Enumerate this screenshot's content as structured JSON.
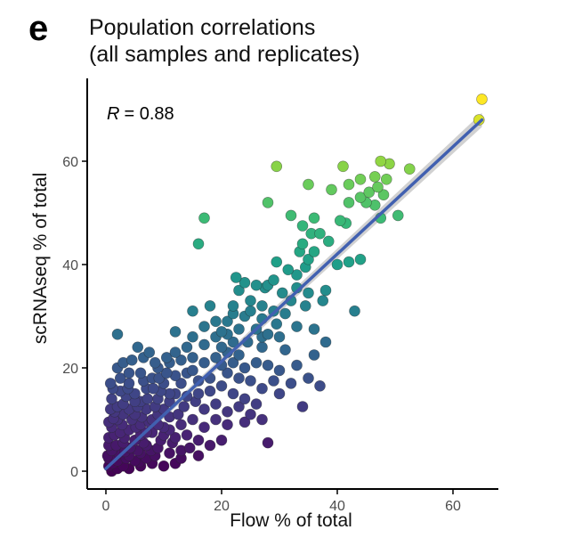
{
  "figure": {
    "panel_label": "e",
    "title_line1": "Population correlations",
    "title_line2": "(all samples and replicates)",
    "stat_label": "R",
    "stat_value": "= 0.88"
  },
  "chart_data": {
    "type": "scatter",
    "title": "Population correlations (all samples and replicates)",
    "xlabel": "Flow % of total",
    "ylabel": "scRNAseq % of total",
    "xlim": [
      -2,
      67
    ],
    "ylim": [
      -3,
      76
    ],
    "xticks": [
      0,
      20,
      40,
      60
    ],
    "yticks": [
      0,
      20,
      40,
      60
    ],
    "annotation": "R = 0.88",
    "color_scale": "viridis",
    "grid": false,
    "regression_line": {
      "x": [
        0,
        65
      ],
      "y": [
        0.5,
        68
      ],
      "color": "#4160b0",
      "band_color": "#bdbdbd"
    },
    "points": [
      [
        65,
        72
      ],
      [
        64.5,
        68
      ],
      [
        47.5,
        60
      ],
      [
        49,
        59.5
      ],
      [
        52.5,
        58.5
      ],
      [
        41,
        59
      ],
      [
        29.5,
        59
      ],
      [
        46.5,
        57
      ],
      [
        44,
        56.5
      ],
      [
        42,
        55.5
      ],
      [
        35,
        55.5
      ],
      [
        48.5,
        56.5
      ],
      [
        47,
        55
      ],
      [
        45.5,
        54
      ],
      [
        44,
        53
      ],
      [
        39,
        54.5
      ],
      [
        48,
        53.5
      ],
      [
        46.5,
        51.5
      ],
      [
        28,
        52
      ],
      [
        32,
        49.5
      ],
      [
        50.5,
        49.5
      ],
      [
        47.5,
        49
      ],
      [
        45,
        52
      ],
      [
        42,
        52
      ],
      [
        40.5,
        48.5
      ],
      [
        41.5,
        48
      ],
      [
        36,
        49
      ],
      [
        34,
        47.5
      ],
      [
        35.5,
        46
      ],
      [
        17,
        49
      ],
      [
        16,
        44
      ],
      [
        37,
        46
      ],
      [
        38.5,
        44.5
      ],
      [
        34,
        44
      ],
      [
        33.5,
        42.5
      ],
      [
        36,
        42.5
      ],
      [
        35,
        41
      ],
      [
        42,
        40.5
      ],
      [
        44,
        41
      ],
      [
        40,
        40
      ],
      [
        29.5,
        40.5
      ],
      [
        31.5,
        39
      ],
      [
        33,
        38
      ],
      [
        34.5,
        39.5
      ],
      [
        29,
        37
      ],
      [
        27.5,
        35.5
      ],
      [
        30.5,
        34.5
      ],
      [
        26,
        36
      ],
      [
        24,
        36.5
      ],
      [
        23,
        35
      ],
      [
        22.5,
        37.5
      ],
      [
        28,
        36
      ],
      [
        33,
        35.5
      ],
      [
        35,
        34.5
      ],
      [
        38,
        35
      ],
      [
        37.5,
        33
      ],
      [
        32,
        33
      ],
      [
        34.5,
        32
      ],
      [
        29,
        31
      ],
      [
        31,
        30.5
      ],
      [
        27,
        32
      ],
      [
        25,
        31
      ],
      [
        22,
        32
      ],
      [
        24,
        30
      ],
      [
        27,
        29.5
      ],
      [
        29.5,
        28.5
      ],
      [
        33,
        28
      ],
      [
        36,
        27.5
      ],
      [
        43,
        31
      ],
      [
        18,
        32
      ],
      [
        15,
        31
      ],
      [
        21,
        29
      ],
      [
        20,
        27
      ],
      [
        23,
        27.5
      ],
      [
        26,
        27.5
      ],
      [
        28,
        26.5
      ],
      [
        30,
        26
      ],
      [
        24.5,
        25
      ],
      [
        22,
        25
      ],
      [
        19,
        26
      ],
      [
        17,
        24.5
      ],
      [
        21,
        23
      ],
      [
        14,
        24
      ],
      [
        12,
        23
      ],
      [
        10.5,
        22
      ],
      [
        5.5,
        24
      ],
      [
        2,
        26.5
      ],
      [
        7.5,
        23
      ],
      [
        9,
        20
      ],
      [
        11,
        21
      ],
      [
        13,
        21.5
      ],
      [
        15,
        22
      ],
      [
        17,
        21
      ],
      [
        19,
        22
      ],
      [
        22,
        21
      ],
      [
        24,
        20
      ],
      [
        26,
        21
      ],
      [
        28,
        20.5
      ],
      [
        30,
        19.5
      ],
      [
        33,
        20.5
      ],
      [
        35,
        18
      ],
      [
        37,
        16.5
      ],
      [
        32,
        17
      ],
      [
        29,
        17.5
      ],
      [
        27,
        16
      ],
      [
        25,
        17.5
      ],
      [
        23,
        18
      ],
      [
        21,
        19
      ],
      [
        20,
        16.5
      ],
      [
        18,
        15.5
      ],
      [
        16,
        17.5
      ],
      [
        15,
        19.5
      ],
      [
        13,
        17
      ],
      [
        12,
        15
      ],
      [
        10,
        17
      ],
      [
        8,
        18
      ],
      [
        6,
        19
      ],
      [
        4,
        17
      ],
      [
        3,
        21
      ],
      [
        5,
        15
      ],
      [
        7,
        16
      ],
      [
        9,
        14
      ],
      [
        11,
        13.5
      ],
      [
        13.5,
        12.5
      ],
      [
        15.5,
        13.5
      ],
      [
        17,
        12
      ],
      [
        19,
        13
      ],
      [
        21,
        11.5
      ],
      [
        23,
        12.5
      ],
      [
        25,
        11
      ],
      [
        27,
        10
      ],
      [
        24,
        9.5
      ],
      [
        21,
        9
      ],
      [
        19,
        10
      ],
      [
        17,
        8.5
      ],
      [
        15,
        10
      ],
      [
        13,
        9
      ],
      [
        11,
        10.5
      ],
      [
        9,
        11
      ],
      [
        7,
        12
      ],
      [
        5,
        11
      ],
      [
        3,
        13
      ],
      [
        2,
        10
      ],
      [
        4,
        8
      ],
      [
        6,
        9
      ],
      [
        8,
        7.5
      ],
      [
        10,
        7
      ],
      [
        12,
        6.5
      ],
      [
        14,
        7
      ],
      [
        16,
        6
      ],
      [
        18,
        5
      ],
      [
        28,
        5.5
      ],
      [
        20,
        6
      ],
      [
        1.5,
        7
      ],
      [
        3,
        5.5
      ],
      [
        5,
        6
      ],
      [
        7,
        5
      ],
      [
        9,
        4.5
      ],
      [
        11,
        3.5
      ],
      [
        13,
        4
      ],
      [
        10,
        1
      ],
      [
        12,
        1.5
      ],
      [
        1,
        4
      ],
      [
        2,
        2
      ],
      [
        3,
        1
      ],
      [
        4,
        3
      ],
      [
        5,
        2
      ],
      [
        6,
        3.5
      ],
      [
        7,
        2.5
      ],
      [
        8,
        1.5
      ],
      [
        0.5,
        1
      ],
      [
        1,
        0
      ],
      [
        2,
        0.5
      ],
      [
        4,
        0.5
      ],
      [
        6,
        1
      ],
      [
        0.5,
        2.5
      ],
      [
        1.5,
        3
      ],
      [
        3.5,
        2.5
      ],
      [
        5.5,
        4
      ],
      [
        6.5,
        5.5
      ],
      [
        8.5,
        3
      ],
      [
        0.5,
        5
      ],
      [
        1,
        8.5
      ],
      [
        2.5,
        7.5
      ],
      [
        4.5,
        10
      ],
      [
        5.5,
        12.5
      ],
      [
        7.5,
        9.5
      ],
      [
        3.5,
        14.5
      ],
      [
        1.5,
        11.5
      ],
      [
        0.5,
        9.5
      ],
      [
        2.5,
        15.5
      ],
      [
        6,
        13.5
      ],
      [
        8.5,
        12.5
      ],
      [
        10,
        8.5
      ],
      [
        11.5,
        5.5
      ],
      [
        13,
        2.5
      ],
      [
        14.5,
        4.5
      ],
      [
        16,
        3
      ],
      [
        12.5,
        11
      ],
      [
        14,
        14.5
      ],
      [
        9.5,
        15.5
      ],
      [
        6.5,
        17.5
      ],
      [
        4,
        19
      ],
      [
        2.5,
        18
      ],
      [
        1,
        14
      ],
      [
        0.8,
        12
      ],
      [
        1.2,
        16
      ],
      [
        3,
        11
      ],
      [
        4,
        12
      ],
      [
        5,
        13.5
      ],
      [
        6,
        7
      ],
      [
        7,
        7.5
      ],
      [
        8,
        10
      ],
      [
        9,
        9
      ],
      [
        10,
        12
      ],
      [
        11,
        15
      ],
      [
        12,
        18.5
      ],
      [
        14,
        19
      ],
      [
        16,
        15
      ],
      [
        18,
        18
      ],
      [
        20,
        20.5
      ],
      [
        22,
        15
      ],
      [
        24,
        14
      ],
      [
        26,
        13
      ],
      [
        30,
        15
      ],
      [
        34,
        12.5
      ],
      [
        36,
        22.5
      ],
      [
        38,
        25
      ],
      [
        31,
        23.5
      ],
      [
        27,
        24
      ],
      [
        23,
        22.5
      ],
      [
        20,
        24
      ],
      [
        17,
        28
      ],
      [
        25,
        33
      ],
      [
        27,
        26
      ],
      [
        0.5,
        6.5
      ],
      [
        1.8,
        5
      ],
      [
        2.2,
        3.5
      ],
      [
        3.2,
        6.5
      ],
      [
        4.2,
        4.5
      ],
      [
        5.2,
        8.5
      ],
      [
        6.2,
        10.5
      ],
      [
        7.2,
        14
      ],
      [
        8.2,
        16
      ],
      [
        9.2,
        18
      ],
      [
        10.5,
        19
      ],
      [
        0.3,
        3
      ],
      [
        1.2,
        1.5
      ],
      [
        2.8,
        9
      ],
      [
        3.8,
        16
      ],
      [
        2,
        12.5
      ],
      [
        1.3,
        10.2
      ],
      [
        3.3,
        3.8
      ],
      [
        5.8,
        1.8
      ],
      [
        7.8,
        4
      ],
      [
        9.5,
        6
      ],
      [
        11,
        8
      ],
      [
        0.8,
        17
      ],
      [
        2,
        20
      ],
      [
        4.5,
        21.5
      ],
      [
        6.5,
        22
      ],
      [
        8.5,
        21
      ],
      [
        15,
        26
      ],
      [
        19,
        29
      ],
      [
        21,
        26.5
      ],
      [
        22,
        30.5
      ],
      [
        12,
        27
      ]
    ]
  }
}
